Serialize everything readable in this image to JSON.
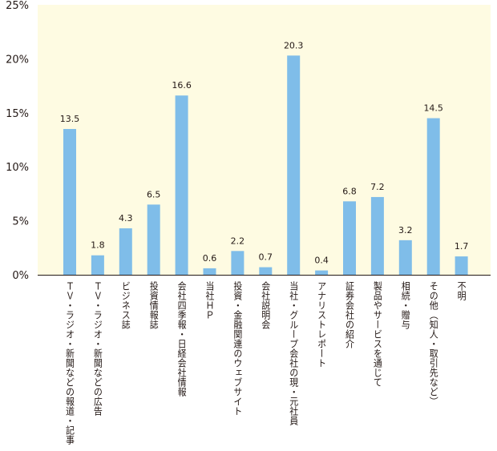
{
  "chart_data": {
    "type": "bar",
    "categories": [
      "ＴＶ・ラジオ・新聞などの報道・記事",
      "ＴＶ・ラジオ・新聞などの広告",
      "ビジネス誌",
      "投資情報誌",
      "会社四季報・日経会社情報",
      "当社ＨＰ",
      "投資・金融関連のウェブサイト",
      "会社説明会",
      "当社・グループ会社の現・元社員",
      "アナリストレポート",
      "証券会社の紹介",
      "製品やサービスを通じて",
      "相続・贈与",
      "その他（知人・取引先など）",
      "不明"
    ],
    "values": [
      13.5,
      1.8,
      4.3,
      6.5,
      16.6,
      0.6,
      2.2,
      0.7,
      20.3,
      0.4,
      6.8,
      7.2,
      3.2,
      14.5,
      1.7
    ],
    "value_labels": [
      "13.5",
      "1.8",
      "4.3",
      "6.5",
      "16.6",
      "0.6",
      "2.2",
      "0.7",
      "20.3",
      "0.4",
      "6.8",
      "7.2",
      "3.2",
      "14.5",
      "1.7"
    ],
    "y_ticks": [
      0,
      5,
      10,
      15,
      20,
      25
    ],
    "y_tick_labels": [
      "0%",
      "5%",
      "10%",
      "15%",
      "20%",
      "25%"
    ],
    "ylim": [
      0,
      25
    ],
    "grid": false,
    "colors": {
      "bar": "#7fbde9",
      "plot_background": "#fefbe2",
      "axis": "#231815"
    }
  }
}
